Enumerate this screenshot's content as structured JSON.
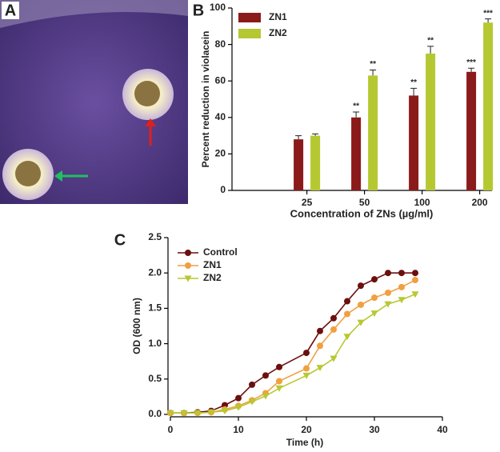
{
  "image_panel": {
    "label": "A"
  },
  "chart_data": [
    {
      "type": "bar",
      "panel_label": "B",
      "x_label": "Concentration of ZNs (µg/ml)",
      "y_label": "Percent reduction in violacein",
      "categories": [
        "25",
        "50",
        "100",
        "200"
      ],
      "series": [
        {
          "name": "ZN1",
          "color": "#8b1a1a",
          "values": [
            28,
            40,
            52,
            65
          ],
          "errors": [
            2,
            3,
            4,
            2
          ],
          "significance": [
            null,
            "**",
            "**",
            "***"
          ]
        },
        {
          "name": "ZN2",
          "color": "#b5c832",
          "values": [
            30,
            63,
            75,
            92
          ],
          "errors": [
            1,
            3,
            4,
            2
          ],
          "significance": [
            null,
            "**",
            "**",
            "***"
          ]
        }
      ],
      "ylim": [
        0,
        100
      ],
      "yticks": [
        0,
        20,
        40,
        60,
        80,
        100
      ],
      "legend": "upper left"
    },
    {
      "type": "line",
      "panel_label": "C",
      "x_label": "Time (h)",
      "y_label": "OD (600 nm)",
      "x": [
        0,
        2,
        4,
        6,
        8,
        10,
        12,
        14,
        16,
        20,
        22,
        24,
        26,
        28,
        30,
        32,
        34,
        36
      ],
      "series": [
        {
          "name": "Control",
          "color": "#6b0f0f",
          "marker": "circle",
          "values": [
            0.02,
            0.02,
            0.03,
            0.05,
            0.13,
            0.23,
            0.42,
            0.55,
            0.67,
            0.87,
            1.18,
            1.36,
            1.6,
            1.82,
            1.91,
            2.0,
            2.0,
            2.0
          ]
        },
        {
          "name": "ZN1",
          "color": "#f0a040",
          "marker": "circle",
          "values": [
            0.02,
            0.02,
            0.02,
            0.03,
            0.07,
            0.12,
            0.2,
            0.3,
            0.47,
            0.65,
            0.97,
            1.2,
            1.42,
            1.55,
            1.65,
            1.72,
            1.8,
            1.9
          ]
        },
        {
          "name": "ZN2",
          "color": "#b8c832",
          "marker": "triangle-down",
          "values": [
            0.02,
            0.02,
            0.02,
            0.03,
            0.05,
            0.1,
            0.18,
            0.26,
            0.37,
            0.55,
            0.66,
            0.79,
            1.1,
            1.3,
            1.43,
            1.56,
            1.62,
            1.7
          ]
        }
      ],
      "xlim": [
        0,
        40
      ],
      "xticks": [
        0,
        10,
        20,
        30,
        40
      ],
      "ylim": [
        0,
        2.5
      ],
      "yticks": [
        {
          "value": 0,
          "label": "0.0"
        },
        0.5,
        {
          "value": 1,
          "label": "1.0"
        },
        1.5,
        {
          "value": 2,
          "label": "2.0"
        },
        2.5
      ],
      "legend": "upper left"
    }
  ]
}
